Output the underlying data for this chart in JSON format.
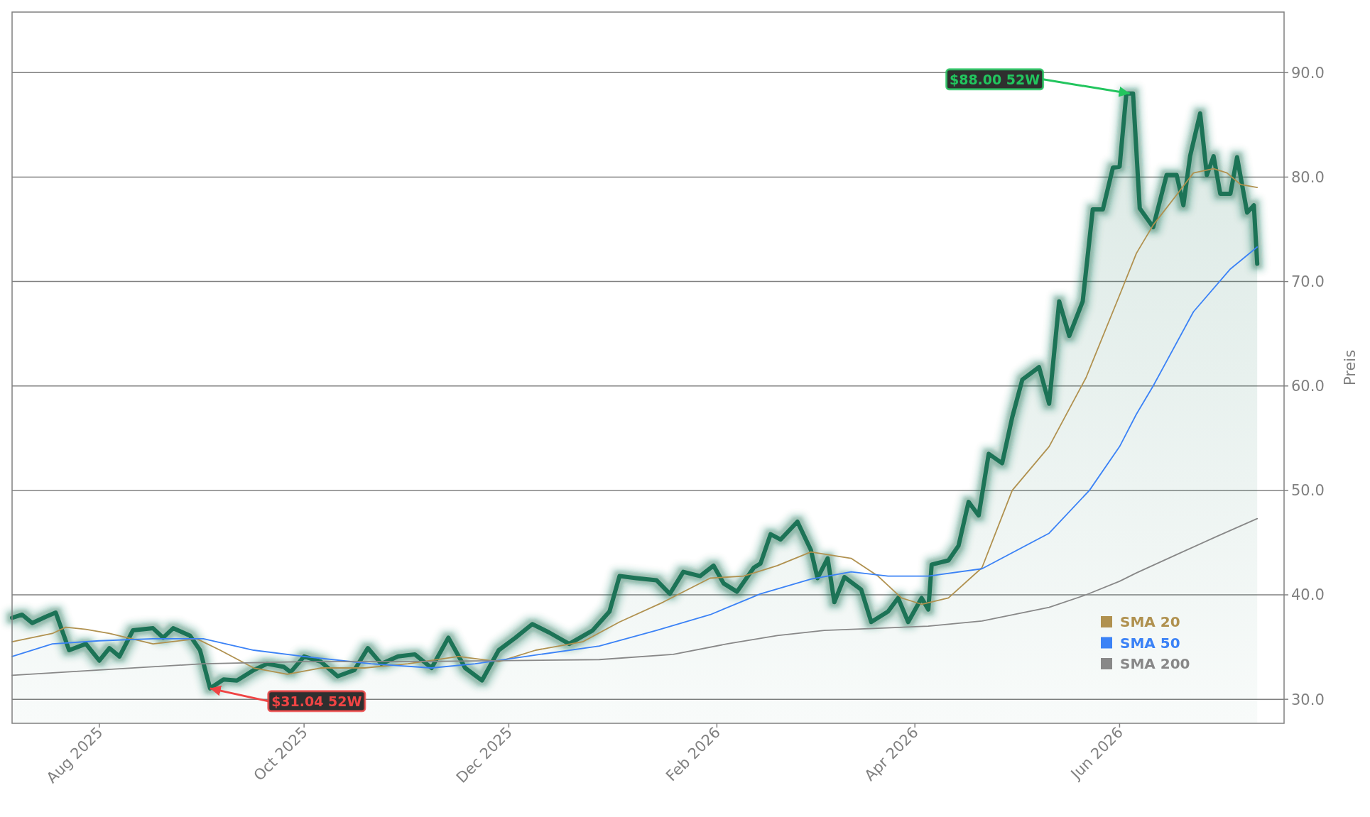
{
  "chart_data": {
    "type": "line",
    "ylabel": "Preis",
    "xlim": [
      "2025-07-06",
      "2026-07-20"
    ],
    "ylim": [
      27.7,
      95.8
    ],
    "xticks": [
      {
        "value": "2025-08-01",
        "label": "Aug 2025"
      },
      {
        "value": "2025-10-01",
        "label": "Oct 2025"
      },
      {
        "value": "2025-12-01",
        "label": "Dec 2025"
      },
      {
        "value": "2026-02-01",
        "label": "Feb 2026"
      },
      {
        "value": "2026-04-01",
        "label": "Apr 2026"
      },
      {
        "value": "2026-06-01",
        "label": "Jun 2026"
      }
    ],
    "yticks": [
      {
        "value": 30,
        "label": "30.0"
      },
      {
        "value": 40,
        "label": "40.0"
      },
      {
        "value": 50,
        "label": "50.0"
      },
      {
        "value": 60,
        "label": "60.0"
      },
      {
        "value": 70,
        "label": "70.0"
      },
      {
        "value": 80,
        "label": "80.0"
      },
      {
        "value": 90,
        "label": "90.0"
      }
    ],
    "grid": "y",
    "legend": "bottom right",
    "marker": "none",
    "line_style": "solid",
    "annotations": [
      {
        "text": "$88.00 52W",
        "x": "2026-06-04",
        "y": 88.0
      },
      {
        "text": "$31.04 52W",
        "x": "2025-09-03",
        "y": 31.04
      }
    ],
    "series": [
      {
        "type": "area",
        "color": "#1b7357",
        "x": [
          "2025-07-06",
          "2025-07-09",
          "2025-07-12",
          "2025-07-16",
          "2025-07-19",
          "2025-07-23",
          "2025-07-28",
          "2025-08-01",
          "2025-08-04",
          "2025-08-07",
          "2025-08-11",
          "2025-08-17",
          "2025-08-20",
          "2025-08-23",
          "2025-08-28",
          "2025-08-31",
          "2025-09-03",
          "2025-09-07",
          "2025-09-11",
          "2025-09-16",
          "2025-09-20",
          "2025-09-25",
          "2025-09-27",
          "2025-10-01",
          "2025-10-06",
          "2025-10-11",
          "2025-10-16",
          "2025-10-20",
          "2025-10-24",
          "2025-10-29",
          "2025-11-03",
          "2025-11-08",
          "2025-11-13",
          "2025-11-18",
          "2025-11-23",
          "2025-11-28",
          "2025-12-03",
          "2025-12-08",
          "2025-12-13",
          "2025-12-19",
          "2025-12-26",
          "2025-12-31",
          "2026-01-03",
          "2026-01-08",
          "2026-01-14",
          "2026-01-18",
          "2026-01-22",
          "2026-01-27",
          "2026-01-31",
          "2026-02-03",
          "2026-02-07",
          "2026-02-12",
          "2026-02-14",
          "2026-02-17",
          "2026-02-20",
          "2026-02-25",
          "2026-03-01",
          "2026-03-03",
          "2026-03-06",
          "2026-03-08",
          "2026-03-11",
          "2026-03-16",
          "2026-03-19",
          "2026-03-24",
          "2026-03-27",
          "2026-03-30",
          "2026-04-03",
          "2026-04-05",
          "2026-04-06",
          "2026-04-11",
          "2026-04-14",
          "2026-04-17",
          "2026-04-20",
          "2026-04-23",
          "2026-04-27",
          "2026-04-30",
          "2026-05-03",
          "2026-05-08",
          "2026-05-11",
          "2026-05-14",
          "2026-05-17",
          "2026-05-21",
          "2026-05-24",
          "2026-05-27",
          "2026-05-30",
          "2026-06-01",
          "2026-06-03",
          "2026-06-05",
          "2026-06-07",
          "2026-06-11",
          "2026-06-15",
          "2026-06-18",
          "2026-06-20",
          "2026-06-22",
          "2026-06-25",
          "2026-06-27",
          "2026-06-29",
          "2026-07-01",
          "2026-07-04",
          "2026-07-06",
          "2026-07-09",
          "2026-07-11",
          "2026-07-12"
        ],
        "values": [
          37.8,
          38.1,
          37.3,
          37.9,
          38.3,
          34.7,
          35.3,
          33.7,
          34.9,
          34.1,
          36.6,
          36.8,
          35.9,
          36.8,
          36.1,
          34.7,
          31.04,
          31.9,
          31.8,
          32.8,
          33.4,
          33.1,
          32.6,
          34.1,
          33.6,
          32.2,
          32.8,
          34.9,
          33.4,
          34.1,
          34.3,
          33.0,
          35.9,
          33.0,
          31.8,
          34.7,
          35.9,
          37.2,
          36.4,
          35.3,
          36.6,
          38.4,
          41.8,
          41.6,
          41.4,
          40.1,
          42.2,
          41.8,
          42.8,
          41.1,
          40.3,
          42.6,
          43.0,
          45.8,
          45.3,
          47.0,
          44.3,
          41.6,
          43.5,
          39.3,
          41.7,
          40.5,
          37.4,
          38.4,
          39.7,
          37.4,
          39.7,
          38.6,
          42.9,
          43.3,
          44.7,
          48.9,
          47.6,
          53.5,
          52.6,
          57.0,
          60.6,
          61.8,
          58.3,
          68.1,
          64.8,
          68.1,
          76.9,
          76.9,
          80.9,
          81.0,
          88.0,
          88.0,
          77.0,
          75.2,
          80.2,
          80.2,
          77.3,
          82.0,
          86.1,
          80.2,
          82.0,
          78.4,
          78.4,
          81.9,
          76.6,
          77.3,
          71.7
        ]
      },
      {
        "name": "SMA 20",
        "color": "#b0914f",
        "x": [
          "2025-07-06",
          "2025-07-18",
          "2025-07-22",
          "2025-07-28",
          "2025-08-04",
          "2025-08-17",
          "2025-08-30",
          "2025-09-06",
          "2025-09-16",
          "2025-09-26",
          "2025-10-06",
          "2025-10-19",
          "2025-11-01",
          "2025-11-16",
          "2025-11-28",
          "2025-12-09",
          "2025-12-23",
          "2026-01-03",
          "2026-01-16",
          "2026-01-30",
          "2026-02-09",
          "2026-02-19",
          "2026-03-01",
          "2026-03-13",
          "2026-03-21",
          "2026-03-28",
          "2026-04-03",
          "2026-04-11",
          "2026-04-21",
          "2026-04-30",
          "2026-05-11",
          "2026-05-22",
          "2026-06-01",
          "2026-06-06",
          "2026-06-11",
          "2026-06-18",
          "2026-06-23",
          "2026-06-29",
          "2026-07-03",
          "2026-07-07",
          "2026-07-12"
        ],
        "values": [
          35.5,
          36.3,
          36.9,
          36.7,
          36.3,
          35.3,
          35.8,
          34.7,
          33.0,
          32.4,
          33.0,
          33.0,
          33.4,
          34.1,
          33.6,
          34.7,
          35.5,
          37.4,
          39.3,
          41.6,
          41.8,
          42.8,
          44.1,
          43.5,
          41.8,
          39.7,
          39.1,
          39.7,
          42.6,
          50.0,
          54.2,
          60.8,
          68.7,
          72.7,
          75.4,
          78.3,
          80.4,
          80.8,
          80.4,
          79.3,
          79.0
        ]
      },
      {
        "name": "SMA 50",
        "color": "#3b82f6",
        "x": [
          "2025-07-06",
          "2025-07-18",
          "2025-08-01",
          "2025-08-17",
          "2025-09-01",
          "2025-09-16",
          "2025-10-01",
          "2025-10-21",
          "2025-11-08",
          "2025-11-21",
          "2025-12-06",
          "2025-12-28",
          "2026-01-14",
          "2026-01-30",
          "2026-02-14",
          "2026-03-01",
          "2026-03-13",
          "2026-03-24",
          "2026-04-05",
          "2026-04-21",
          "2026-05-11",
          "2026-05-23",
          "2026-06-01",
          "2026-06-06",
          "2026-06-11",
          "2026-06-23",
          "2026-07-04",
          "2026-07-12"
        ],
        "values": [
          34.1,
          35.3,
          35.6,
          35.8,
          35.8,
          34.7,
          34.1,
          33.4,
          33.0,
          33.4,
          34.1,
          35.1,
          36.6,
          38.1,
          40.1,
          41.5,
          42.2,
          41.8,
          41.8,
          42.5,
          45.9,
          50.0,
          54.2,
          57.3,
          60.0,
          67.1,
          71.2,
          73.3
        ]
      },
      {
        "name": "SMA 200",
        "color": "#888888",
        "x": [
          "2025-07-06",
          "2025-08-01",
          "2025-09-01",
          "2025-10-01",
          "2025-11-01",
          "2025-12-01",
          "2025-12-28",
          "2026-01-19",
          "2026-02-04",
          "2026-02-19",
          "2026-03-05",
          "2026-03-21",
          "2026-04-05",
          "2026-04-21",
          "2026-05-11",
          "2026-05-22",
          "2026-06-01",
          "2026-06-06",
          "2026-06-19",
          "2026-06-30",
          "2026-07-12"
        ],
        "values": [
          32.3,
          32.8,
          33.4,
          33.6,
          33.6,
          33.7,
          33.8,
          34.3,
          35.3,
          36.1,
          36.6,
          36.8,
          37.0,
          37.5,
          38.8,
          40.0,
          41.3,
          42.1,
          44.0,
          45.6,
          47.3
        ]
      }
    ]
  }
}
